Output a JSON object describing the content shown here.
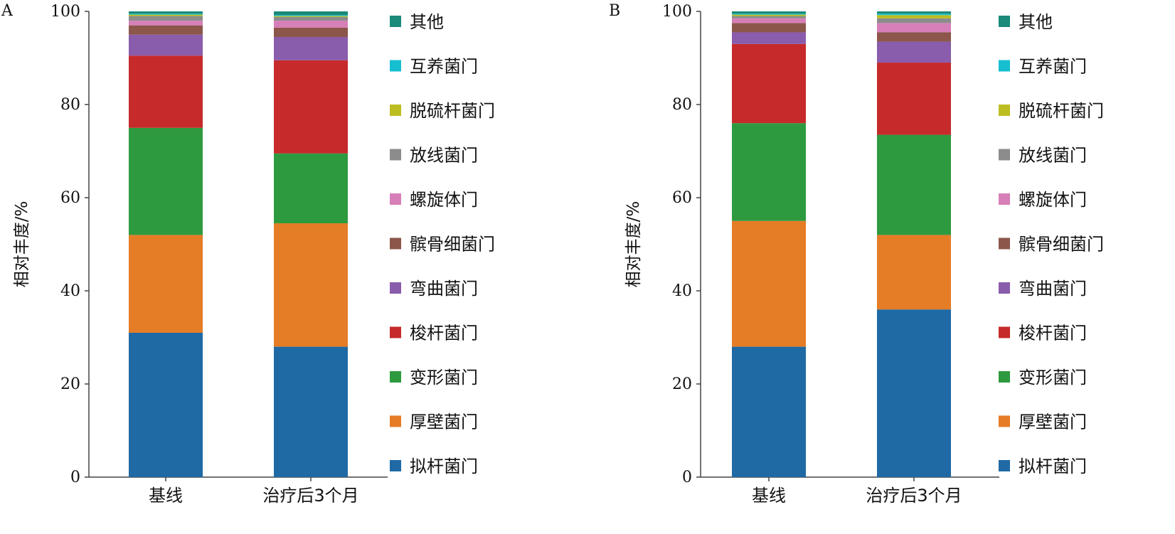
{
  "chart_data": [
    {
      "type": "bar",
      "stacked": true,
      "panel_label": "A",
      "ylabel": "相对丰度/%",
      "xlabel": "",
      "ylim": [
        0,
        100
      ],
      "yticks": [
        0,
        20,
        40,
        60,
        80,
        100
      ],
      "grid": false,
      "legend_placement": "right",
      "categories": [
        "基线",
        "治疗后3个月"
      ],
      "series": [
        {
          "name": "拟杆菌门",
          "color": "#1f6aa5",
          "values": [
            31.0,
            28.0
          ]
        },
        {
          "name": "厚壁菌门",
          "color": "#e57c26",
          "values": [
            21.0,
            26.5
          ]
        },
        {
          "name": "变形菌门",
          "color": "#2e9a3f",
          "values": [
            23.0,
            15.0
          ]
        },
        {
          "name": "梭杆菌门",
          "color": "#c62a2a",
          "values": [
            15.5,
            20.0
          ]
        },
        {
          "name": "弯曲菌门",
          "color": "#8a5cac",
          "values": [
            4.5,
            5.0
          ]
        },
        {
          "name": "髌骨细菌门",
          "color": "#8c564b",
          "values": [
            2.0,
            2.0
          ]
        },
        {
          "name": "螺旋体门",
          "color": "#d77fb8",
          "values": [
            1.0,
            1.5
          ]
        },
        {
          "name": "放线菌门",
          "color": "#8c8c8c",
          "values": [
            1.0,
            0.8
          ]
        },
        {
          "name": "脱硫杆菌门",
          "color": "#bcbd22",
          "values": [
            0.3,
            0.2
          ]
        },
        {
          "name": "互养菌门",
          "color": "#17becf",
          "values": [
            0.2,
            0.2
          ]
        },
        {
          "name": "其他",
          "color": "#1b8a7a",
          "values": [
            0.5,
            0.8
          ]
        }
      ]
    },
    {
      "type": "bar",
      "stacked": true,
      "panel_label": "B",
      "ylabel": "相对丰度/%",
      "xlabel": "",
      "ylim": [
        0,
        100
      ],
      "yticks": [
        0,
        20,
        40,
        60,
        80,
        100
      ],
      "grid": false,
      "legend_placement": "right",
      "categories": [
        "基线",
        "治疗后3个月"
      ],
      "series": [
        {
          "name": "拟杆菌门",
          "color": "#1f6aa5",
          "values": [
            28.0,
            36.0
          ]
        },
        {
          "name": "厚壁菌门",
          "color": "#e57c26",
          "values": [
            27.0,
            16.0
          ]
        },
        {
          "name": "变形菌门",
          "color": "#2e9a3f",
          "values": [
            21.0,
            21.5
          ]
        },
        {
          "name": "梭杆菌门",
          "color": "#c62a2a",
          "values": [
            17.0,
            15.5
          ]
        },
        {
          "name": "弯曲菌门",
          "color": "#8a5cac",
          "values": [
            2.5,
            4.5
          ]
        },
        {
          "name": "髌骨细菌门",
          "color": "#8c564b",
          "values": [
            2.0,
            2.0
          ]
        },
        {
          "name": "螺旋体门",
          "color": "#d77fb8",
          "values": [
            1.0,
            2.0
          ]
        },
        {
          "name": "放线菌门",
          "color": "#8c8c8c",
          "values": [
            0.5,
            1.0
          ]
        },
        {
          "name": "脱硫杆菌门",
          "color": "#bcbd22",
          "values": [
            0.3,
            0.7
          ]
        },
        {
          "name": "互养菌门",
          "color": "#17becf",
          "values": [
            0.2,
            0.3
          ]
        },
        {
          "name": "其他",
          "color": "#1b8a7a",
          "values": [
            0.5,
            0.5
          ]
        }
      ]
    }
  ]
}
